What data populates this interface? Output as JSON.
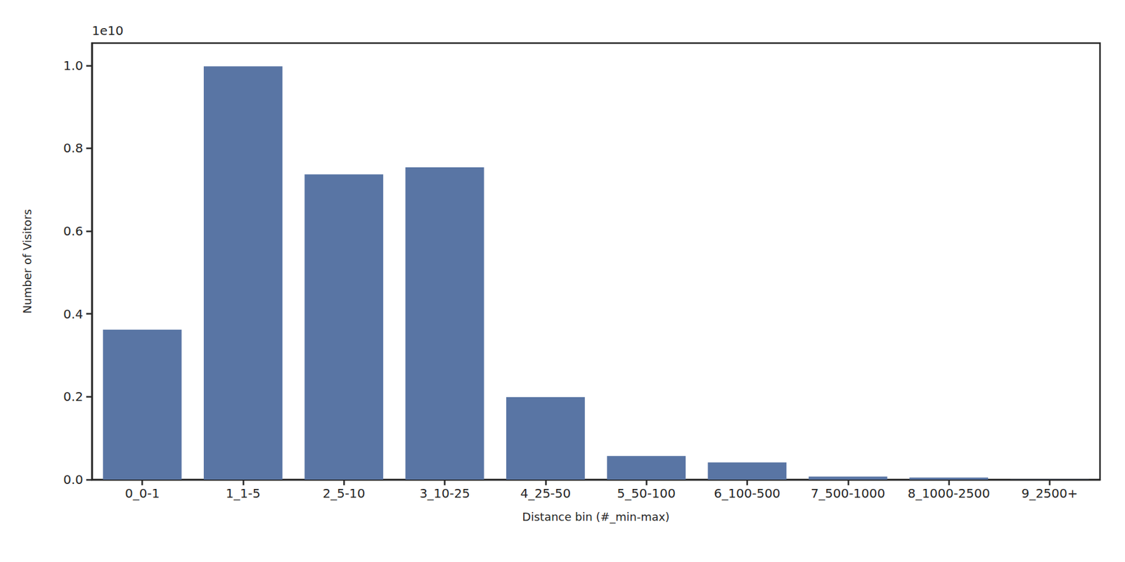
{
  "chart_data": {
    "type": "bar",
    "x_label": "Distance bin (#_min-max)",
    "y_label": "Number of Visitors",
    "annotations": [
      {
        "text": "1e10"
      }
    ],
    "categories": [
      "0_0-1",
      "1_1-5",
      "2_5-10",
      "3_10-25",
      "4_25-50",
      "5_50-100",
      "6_100-500",
      "7_500-1000",
      "8_1000-2500",
      "9_2500+"
    ],
    "values": [
      0.362,
      0.998,
      0.737,
      0.754,
      0.199,
      0.057,
      0.0415,
      0.007,
      0.005,
      0.0005
    ],
    "color": "#5975a4",
    "ylim": [
      0,
      1.054
    ],
    "yticks": [
      {
        "value": 0,
        "label": "0.0"
      },
      {
        "value": 0.2,
        "label": "0.2"
      },
      {
        "value": 0.4,
        "label": "0.4"
      },
      {
        "value": 0.6,
        "label": "0.6"
      },
      {
        "value": 0.8,
        "label": "0.8"
      },
      {
        "value": 1,
        "label": "1.0"
      }
    ],
    "grid": false
  }
}
